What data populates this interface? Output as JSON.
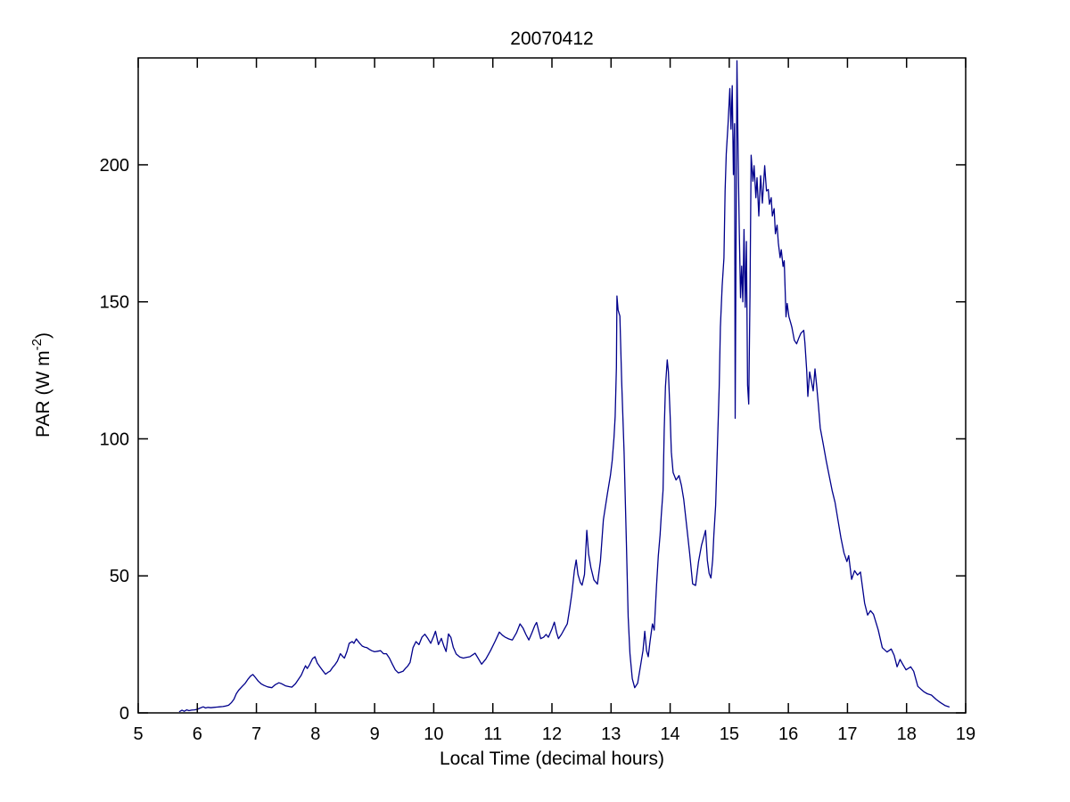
{
  "figure": {
    "background": "#ffffff",
    "axes_box_color": "#000000"
  },
  "chart_data": {
    "type": "line",
    "title": "20070412",
    "xlabel": "Local Time (decimal hours)",
    "ylabel": "PAR (W m^-2)",
    "ylabel_parts": {
      "prefix": "PAR (W m",
      "superscript": "-2",
      "suffix": ")"
    },
    "xlim": [
      5,
      19
    ],
    "ylim": [
      0,
      239
    ],
    "x_ticks": [
      5,
      6,
      7,
      8,
      9,
      10,
      11,
      12,
      13,
      14,
      15,
      16,
      17,
      18,
      19
    ],
    "y_ticks": [
      0,
      50,
      100,
      150,
      200
    ],
    "grid": false,
    "legend": null,
    "line_color": "#00008B",
    "series": [
      {
        "name": "PAR",
        "points": [
          [
            5.7,
            0.5
          ],
          [
            5.74,
            1.0
          ],
          [
            5.78,
            0.6
          ],
          [
            5.82,
            1.1
          ],
          [
            5.86,
            0.8
          ],
          [
            5.9,
            1.0
          ],
          [
            5.95,
            1.1
          ],
          [
            6.0,
            1.3
          ],
          [
            6.05,
            1.8
          ],
          [
            6.1,
            2.2
          ],
          [
            6.14,
            1.8
          ],
          [
            6.18,
            2.0
          ],
          [
            6.23,
            1.9
          ],
          [
            6.28,
            2.0
          ],
          [
            6.33,
            2.1
          ],
          [
            6.38,
            2.2
          ],
          [
            6.43,
            2.3
          ],
          [
            6.48,
            2.5
          ],
          [
            6.53,
            2.8
          ],
          [
            6.58,
            3.8
          ],
          [
            6.62,
            5.0
          ],
          [
            6.66,
            7.0
          ],
          [
            6.7,
            8.3
          ],
          [
            6.76,
            9.7
          ],
          [
            6.81,
            10.8
          ],
          [
            6.86,
            12.4
          ],
          [
            6.9,
            13.4
          ],
          [
            6.94,
            14.0
          ],
          [
            6.98,
            13.0
          ],
          [
            7.03,
            11.6
          ],
          [
            7.08,
            10.6
          ],
          [
            7.13,
            10.0
          ],
          [
            7.19,
            9.5
          ],
          [
            7.26,
            9.2
          ],
          [
            7.32,
            10.3
          ],
          [
            7.38,
            11.0
          ],
          [
            7.43,
            10.6
          ],
          [
            7.49,
            9.9
          ],
          [
            7.55,
            9.6
          ],
          [
            7.6,
            9.4
          ],
          [
            7.66,
            10.6
          ],
          [
            7.71,
            12.2
          ],
          [
            7.76,
            13.8
          ],
          [
            7.8,
            15.8
          ],
          [
            7.83,
            17.2
          ],
          [
            7.86,
            16.2
          ],
          [
            7.9,
            17.6
          ],
          [
            7.95,
            19.8
          ],
          [
            7.99,
            20.5
          ],
          [
            8.03,
            18.2
          ],
          [
            8.08,
            16.6
          ],
          [
            8.13,
            15.2
          ],
          [
            8.17,
            14.1
          ],
          [
            8.21,
            14.8
          ],
          [
            8.25,
            15.3
          ],
          [
            8.29,
            16.6
          ],
          [
            8.33,
            17.6
          ],
          [
            8.37,
            18.9
          ],
          [
            8.42,
            21.6
          ],
          [
            8.46,
            20.6
          ],
          [
            8.49,
            20.0
          ],
          [
            8.53,
            22.3
          ],
          [
            8.57,
            25.4
          ],
          [
            8.62,
            26.0
          ],
          [
            8.65,
            25.4
          ],
          [
            8.69,
            27.0
          ],
          [
            8.74,
            25.6
          ],
          [
            8.79,
            24.4
          ],
          [
            8.83,
            24.0
          ],
          [
            8.87,
            23.8
          ],
          [
            8.91,
            23.2
          ],
          [
            8.95,
            22.7
          ],
          [
            9.0,
            22.3
          ],
          [
            9.05,
            22.5
          ],
          [
            9.1,
            22.7
          ],
          [
            9.15,
            21.6
          ],
          [
            9.2,
            21.6
          ],
          [
            9.25,
            20.0
          ],
          [
            9.3,
            17.8
          ],
          [
            9.35,
            15.7
          ],
          [
            9.4,
            14.6
          ],
          [
            9.44,
            14.9
          ],
          [
            9.48,
            15.2
          ],
          [
            9.52,
            16.2
          ],
          [
            9.56,
            17.1
          ],
          [
            9.6,
            18.4
          ],
          [
            9.65,
            23.8
          ],
          [
            9.7,
            26.0
          ],
          [
            9.75,
            24.9
          ],
          [
            9.8,
            27.6
          ],
          [
            9.85,
            28.7
          ],
          [
            9.9,
            27.2
          ],
          [
            9.95,
            25.4
          ],
          [
            10.0,
            28.0
          ],
          [
            10.03,
            29.8
          ],
          [
            10.08,
            24.9
          ],
          [
            10.13,
            27.2
          ],
          [
            10.17,
            24.5
          ],
          [
            10.21,
            22.4
          ],
          [
            10.25,
            28.8
          ],
          [
            10.29,
            27.5
          ],
          [
            10.33,
            24.0
          ],
          [
            10.38,
            21.5
          ],
          [
            10.44,
            20.4
          ],
          [
            10.5,
            20.0
          ],
          [
            10.56,
            20.3
          ],
          [
            10.61,
            20.5
          ],
          [
            10.66,
            21.2
          ],
          [
            10.7,
            21.8
          ],
          [
            10.76,
            19.6
          ],
          [
            10.81,
            17.8
          ],
          [
            10.88,
            19.6
          ],
          [
            10.96,
            22.7
          ],
          [
            11.04,
            26.2
          ],
          [
            11.11,
            29.5
          ],
          [
            11.16,
            28.4
          ],
          [
            11.21,
            27.6
          ],
          [
            11.27,
            27.0
          ],
          [
            11.33,
            26.6
          ],
          [
            11.4,
            29.2
          ],
          [
            11.46,
            32.5
          ],
          [
            11.51,
            31.0
          ],
          [
            11.56,
            28.6
          ],
          [
            11.61,
            26.6
          ],
          [
            11.66,
            29.2
          ],
          [
            11.71,
            31.9
          ],
          [
            11.74,
            33.0
          ],
          [
            11.78,
            29.6
          ],
          [
            11.81,
            27.1
          ],
          [
            11.86,
            27.6
          ],
          [
            11.9,
            28.6
          ],
          [
            11.94,
            27.6
          ],
          [
            12.0,
            30.6
          ],
          [
            12.04,
            33.1
          ],
          [
            12.08,
            29.2
          ],
          [
            12.11,
            27.1
          ],
          [
            12.16,
            28.6
          ],
          [
            12.21,
            30.6
          ],
          [
            12.26,
            32.5
          ],
          [
            12.3,
            38.0
          ],
          [
            12.34,
            44.0
          ],
          [
            12.38,
            52.0
          ],
          [
            12.41,
            55.8
          ],
          [
            12.44,
            50.5
          ],
          [
            12.48,
            47.6
          ],
          [
            12.51,
            46.6
          ],
          [
            12.55,
            50.5
          ],
          [
            12.59,
            66.6
          ],
          [
            12.62,
            58.0
          ],
          [
            12.66,
            53.0
          ],
          [
            12.71,
            48.5
          ],
          [
            12.77,
            47.0
          ],
          [
            12.82,
            55.5
          ],
          [
            12.87,
            70.5
          ],
          [
            12.94,
            80.2
          ],
          [
            12.99,
            86.7
          ],
          [
            13.02,
            92.1
          ],
          [
            13.05,
            100.5
          ],
          [
            13.07,
            108.2
          ],
          [
            13.09,
            126.0
          ],
          [
            13.1,
            152.1
          ],
          [
            13.12,
            147.0
          ],
          [
            13.15,
            144.8
          ],
          [
            13.18,
            121.0
          ],
          [
            13.22,
            95.2
          ],
          [
            13.26,
            62.0
          ],
          [
            13.29,
            35.0
          ],
          [
            13.32,
            21.6
          ],
          [
            13.36,
            12.5
          ],
          [
            13.4,
            9.2
          ],
          [
            13.45,
            10.8
          ],
          [
            13.5,
            17.3
          ],
          [
            13.54,
            22.7
          ],
          [
            13.57,
            29.8
          ],
          [
            13.6,
            22.7
          ],
          [
            13.63,
            20.5
          ],
          [
            13.66,
            26.0
          ],
          [
            13.7,
            32.5
          ],
          [
            13.73,
            30.2
          ],
          [
            13.77,
            46.5
          ],
          [
            13.8,
            57.4
          ],
          [
            13.83,
            65.0
          ],
          [
            13.85,
            72.0
          ],
          [
            13.88,
            81.2
          ],
          [
            13.9,
            103.0
          ],
          [
            13.92,
            119.0
          ],
          [
            13.95,
            128.8
          ],
          [
            13.97,
            124.5
          ],
          [
            14.0,
            108.2
          ],
          [
            14.02,
            95.2
          ],
          [
            14.05,
            87.7
          ],
          [
            14.1,
            85.0
          ],
          [
            14.15,
            86.6
          ],
          [
            14.19,
            83.0
          ],
          [
            14.23,
            77.9
          ],
          [
            14.28,
            68.2
          ],
          [
            14.33,
            58.4
          ],
          [
            14.38,
            47.1
          ],
          [
            14.43,
            46.5
          ],
          [
            14.48,
            55.2
          ],
          [
            14.53,
            61.1
          ],
          [
            14.58,
            65.0
          ],
          [
            14.6,
            66.6
          ],
          [
            14.63,
            55.7
          ],
          [
            14.66,
            50.9
          ],
          [
            14.69,
            49.2
          ],
          [
            14.72,
            56.0
          ],
          [
            14.74,
            65.0
          ],
          [
            14.77,
            75.8
          ],
          [
            14.8,
            97.4
          ],
          [
            14.83,
            119.0
          ],
          [
            14.85,
            140.7
          ],
          [
            14.88,
            155.8
          ],
          [
            14.91,
            166.0
          ],
          [
            14.93,
            190.5
          ],
          [
            14.95,
            204.0
          ],
          [
            14.98,
            214.8
          ],
          [
            15.01,
            227.8
          ],
          [
            15.03,
            213.0
          ],
          [
            15.05,
            228.9
          ],
          [
            15.07,
            196.4
          ],
          [
            15.09,
            215.0
          ],
          [
            15.1,
            107.5
          ],
          [
            15.13,
            238.0
          ],
          [
            15.15,
            204.0
          ],
          [
            15.17,
            176.0
          ],
          [
            15.19,
            151.5
          ],
          [
            15.21,
            163.0
          ],
          [
            15.23,
            150.0
          ],
          [
            15.25,
            176.4
          ],
          [
            15.27,
            148.0
          ],
          [
            15.29,
            172.0
          ],
          [
            15.31,
            119.6
          ],
          [
            15.33,
            112.7
          ],
          [
            15.35,
            152.0
          ],
          [
            15.37,
            203.5
          ],
          [
            15.4,
            194.0
          ],
          [
            15.42,
            199.7
          ],
          [
            15.45,
            188.0
          ],
          [
            15.47,
            195.3
          ],
          [
            15.5,
            181.3
          ],
          [
            15.53,
            196.0
          ],
          [
            15.56,
            186.0
          ],
          [
            15.6,
            199.7
          ],
          [
            15.63,
            190.5
          ],
          [
            15.66,
            191.0
          ],
          [
            15.68,
            185.6
          ],
          [
            15.71,
            188.0
          ],
          [
            15.73,
            181.3
          ],
          [
            15.76,
            184.0
          ],
          [
            15.78,
            174.8
          ],
          [
            15.81,
            178.0
          ],
          [
            15.83,
            171.5
          ],
          [
            15.86,
            166.1
          ],
          [
            15.88,
            169.0
          ],
          [
            15.91,
            162.9
          ],
          [
            15.93,
            165.0
          ],
          [
            15.96,
            144.5
          ],
          [
            15.98,
            149.4
          ],
          [
            16.01,
            144.5
          ],
          [
            16.04,
            142.3
          ],
          [
            16.06,
            140.7
          ],
          [
            16.1,
            136.0
          ],
          [
            16.14,
            134.7
          ],
          [
            16.18,
            137.0
          ],
          [
            16.21,
            138.5
          ],
          [
            16.26,
            139.6
          ],
          [
            16.28,
            135.0
          ],
          [
            16.31,
            125.0
          ],
          [
            16.33,
            115.5
          ],
          [
            16.36,
            124.4
          ],
          [
            16.39,
            121.0
          ],
          [
            16.42,
            117.5
          ],
          [
            16.45,
            125.5
          ],
          [
            16.48,
            119.0
          ],
          [
            16.51,
            112.0
          ],
          [
            16.54,
            104.0
          ],
          [
            16.59,
            98.0
          ],
          [
            16.64,
            92.0
          ],
          [
            16.69,
            86.6
          ],
          [
            16.74,
            81.2
          ],
          [
            16.79,
            76.8
          ],
          [
            16.84,
            70.3
          ],
          [
            16.89,
            63.9
          ],
          [
            16.94,
            58.4
          ],
          [
            16.99,
            55.2
          ],
          [
            17.02,
            57.4
          ],
          [
            17.07,
            48.7
          ],
          [
            17.12,
            51.9
          ],
          [
            17.17,
            50.3
          ],
          [
            17.22,
            51.4
          ],
          [
            17.29,
            40.0
          ],
          [
            17.34,
            35.7
          ],
          [
            17.39,
            37.3
          ],
          [
            17.44,
            36.0
          ],
          [
            17.52,
            30.3
          ],
          [
            17.59,
            23.8
          ],
          [
            17.67,
            22.2
          ],
          [
            17.74,
            23.3
          ],
          [
            17.79,
            21.0
          ],
          [
            17.84,
            16.8
          ],
          [
            17.89,
            19.5
          ],
          [
            17.94,
            17.6
          ],
          [
            17.99,
            15.7
          ],
          [
            18.07,
            16.8
          ],
          [
            18.12,
            15.2
          ],
          [
            18.19,
            9.7
          ],
          [
            18.24,
            8.7
          ],
          [
            18.3,
            7.6
          ],
          [
            18.35,
            7.0
          ],
          [
            18.42,
            6.5
          ],
          [
            18.5,
            4.9
          ],
          [
            18.57,
            3.8
          ],
          [
            18.65,
            2.7
          ],
          [
            18.72,
            2.2
          ]
        ]
      }
    ]
  }
}
